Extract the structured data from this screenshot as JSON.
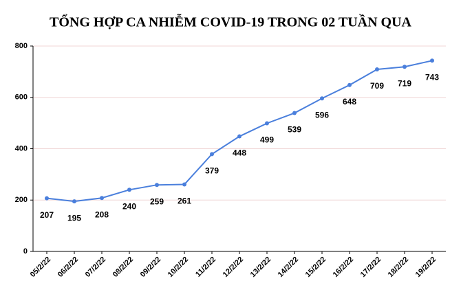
{
  "chart_data": {
    "type": "line",
    "title": "TỔNG HỢP CA NHIỄM COVID-19 TRONG 02 TUẦN QUA",
    "categories": [
      "05/2/22",
      "06/2/22",
      "07/2/22",
      "08/2/22",
      "09/2/22",
      "10/2/22",
      "11/2/22",
      "12/2/22",
      "13/2/22",
      "14/2/22",
      "15/2/22",
      "16/2/22",
      "17/2/22",
      "18/2/22",
      "19/2/22"
    ],
    "values": [
      207,
      195,
      208,
      240,
      259,
      261,
      379,
      448,
      499,
      539,
      596,
      648,
      709,
      719,
      743
    ],
    "color": "#4a7fdc",
    "ylim": [
      0,
      800
    ],
    "yticks": [
      0,
      200,
      400,
      600,
      800
    ],
    "grid": true
  }
}
